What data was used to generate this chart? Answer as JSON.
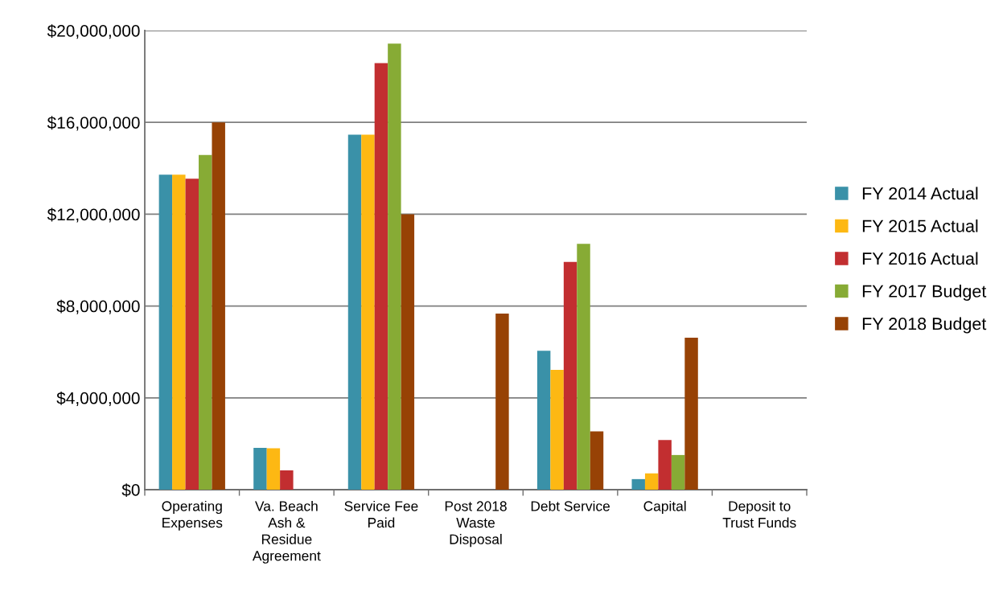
{
  "chart_data": {
    "type": "bar",
    "categories": [
      "Operating\nExpenses",
      "Va. Beach\nAsh &\nResidue\nAgreement",
      "Service Fee\nPaid",
      "Post 2018\nWaste\nDisposal",
      "Debt Service",
      "Capital",
      "Deposit to\nTrust Funds"
    ],
    "series": [
      {
        "name": "FY 2014 Actual",
        "color": "#3a91a8",
        "values": [
          13720000,
          1820000,
          15460000,
          0,
          6050000,
          460000,
          0
        ]
      },
      {
        "name": "FY 2015 Actual",
        "color": "#fdb813",
        "values": [
          13720000,
          1800000,
          15460000,
          0,
          5220000,
          710000,
          0
        ]
      },
      {
        "name": "FY 2016 Actual",
        "color": "#c22e30",
        "values": [
          13550000,
          840000,
          18580000,
          0,
          9920000,
          2160000,
          0
        ]
      },
      {
        "name": "FY 2017 Budget",
        "color": "#87ab35",
        "values": [
          14580000,
          0,
          19430000,
          0,
          10710000,
          1510000,
          0
        ]
      },
      {
        "name": "FY 2018 Budget",
        "color": "#974205",
        "values": [
          16000000,
          0,
          12000000,
          7670000,
          2540000,
          6620000,
          0
        ]
      }
    ],
    "ylim": [
      0,
      20000000
    ],
    "yticks": [
      {
        "value": 0,
        "label": "$0"
      },
      {
        "value": 4000000,
        "label": "$4,000,000"
      },
      {
        "value": 8000000,
        "label": "$8,000,000"
      },
      {
        "value": 12000000,
        "label": "$12,000,000"
      },
      {
        "value": 16000000,
        "label": "$16,000,000"
      },
      {
        "value": 20000000,
        "label": "$20,000,000"
      }
    ],
    "grid": "y",
    "legend": "right"
  }
}
